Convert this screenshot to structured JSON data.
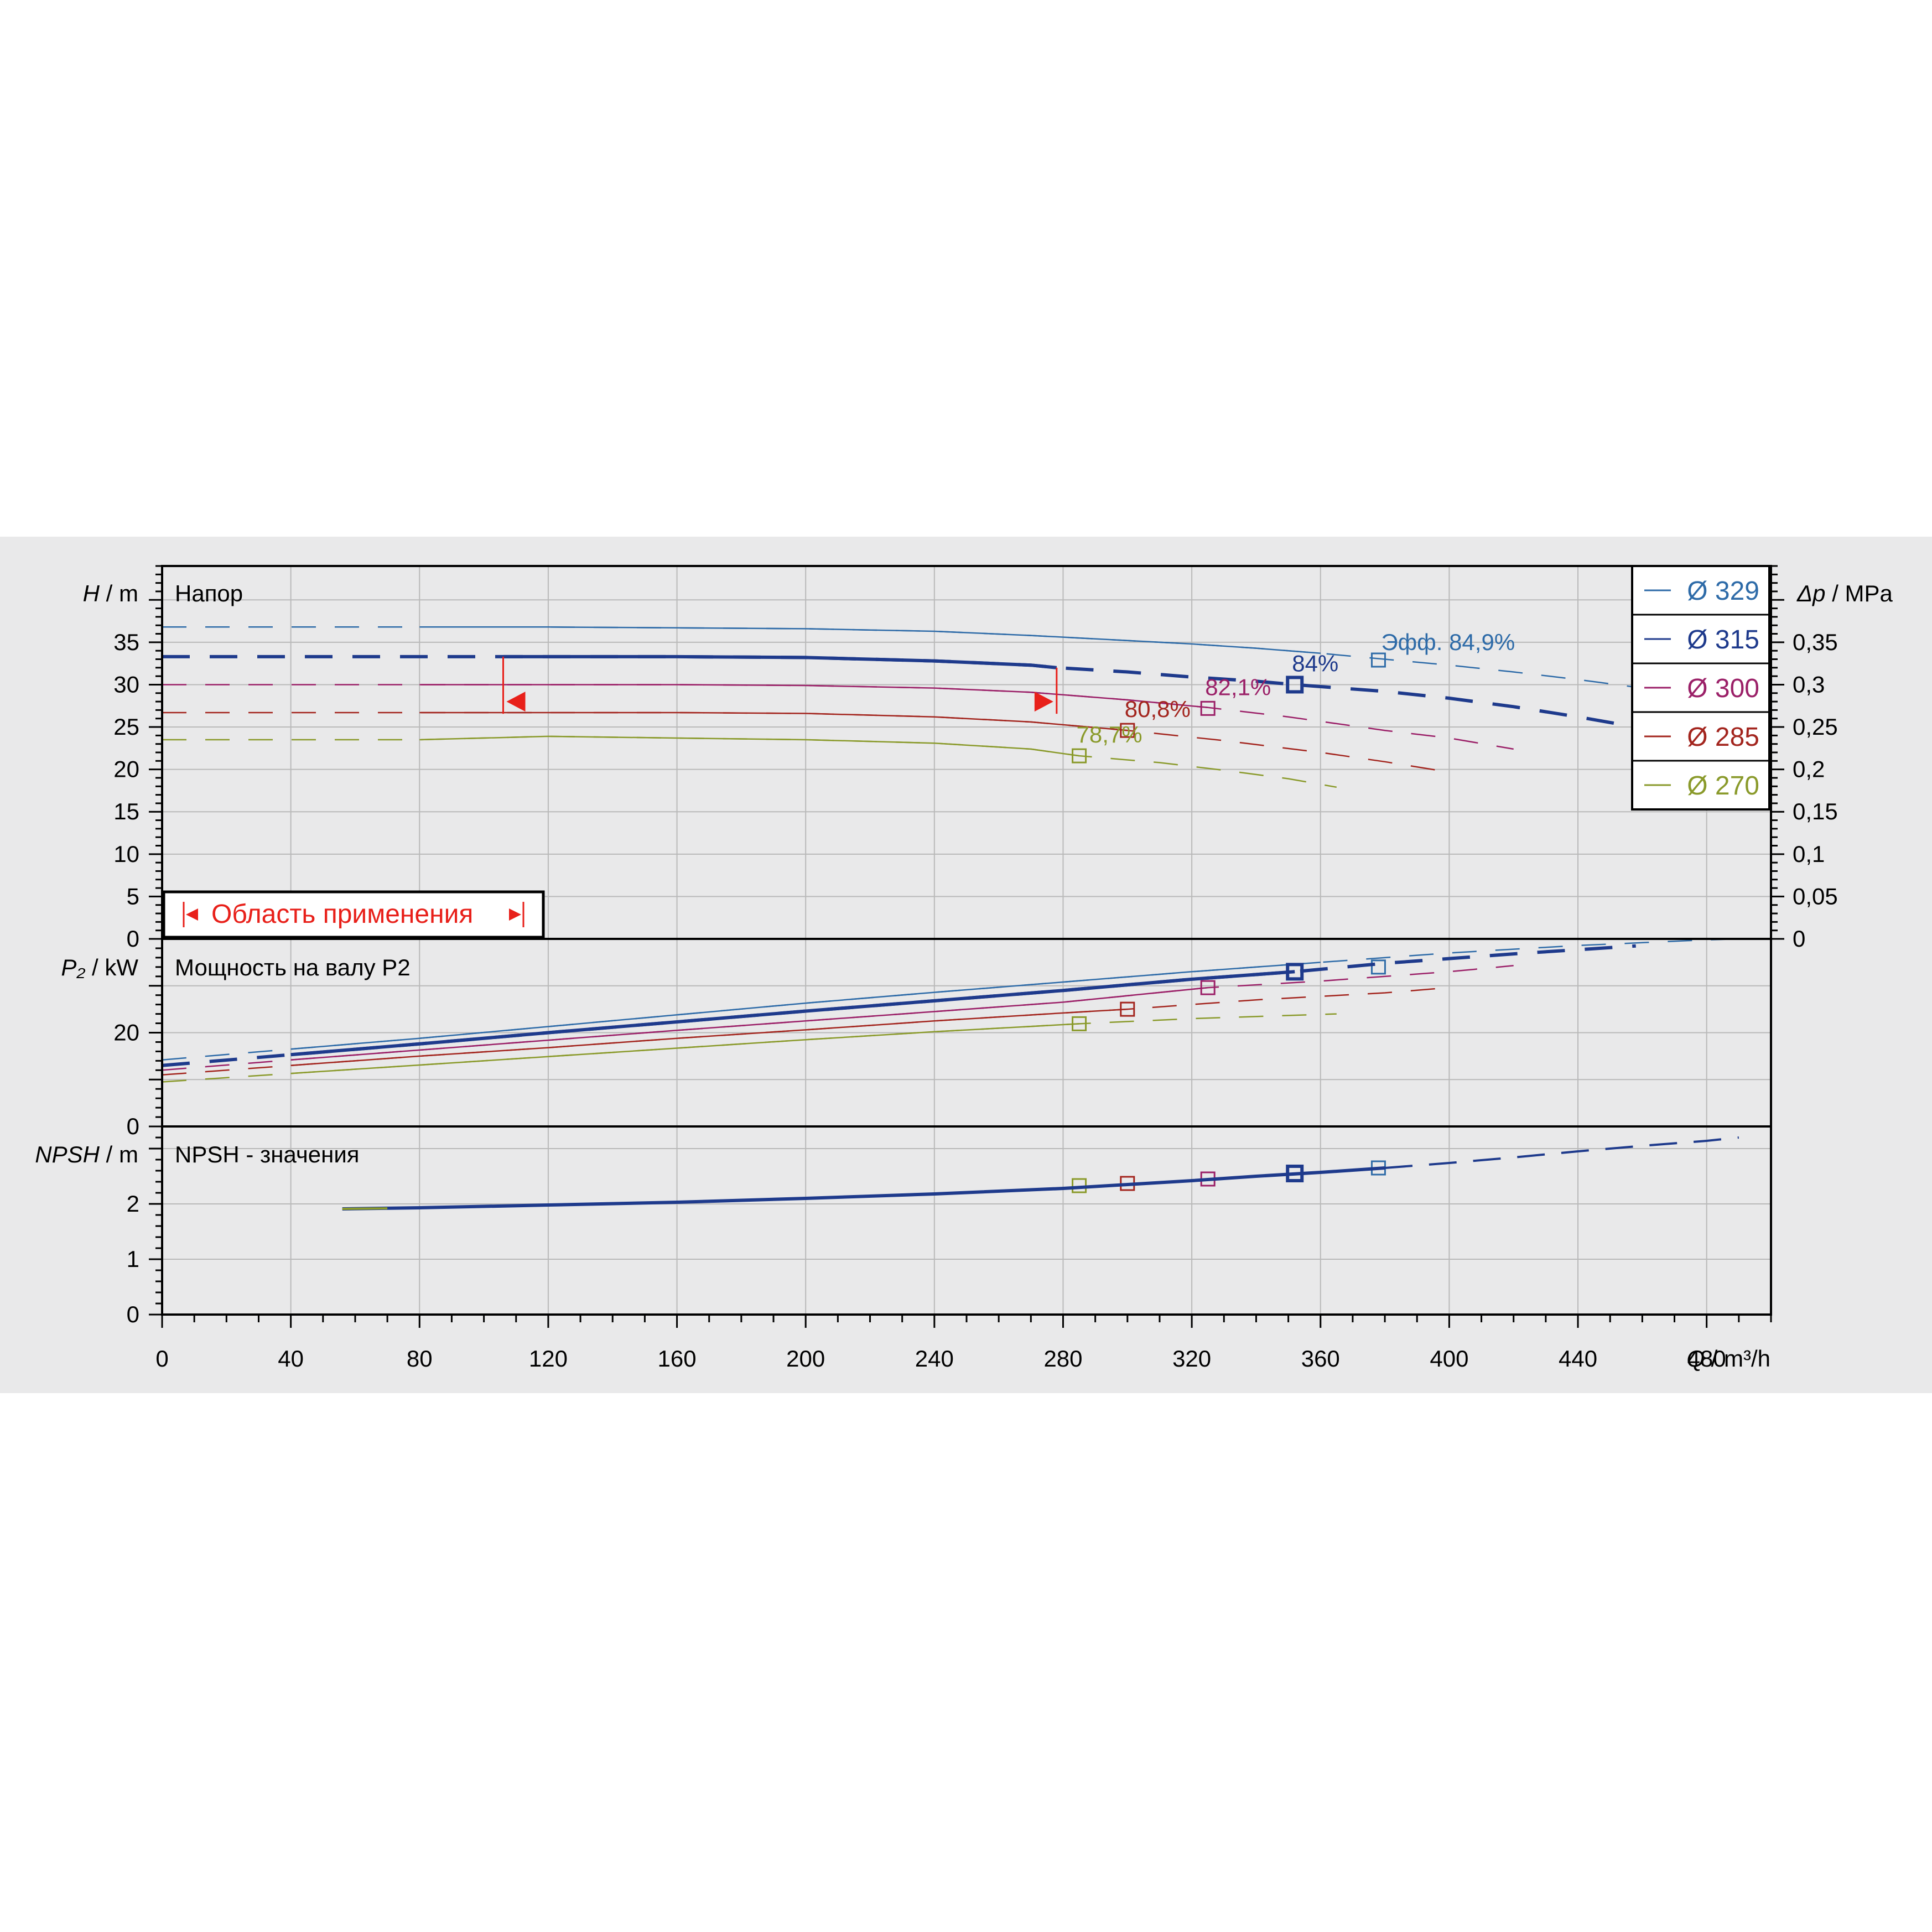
{
  "chart_data": {
    "type": "line",
    "x_axis": {
      "label_italic": "Q",
      "label_unit": "/ m³/h",
      "range": [
        0,
        500
      ],
      "ticks": [
        "0",
        "40",
        "80",
        "120",
        "160",
        "200",
        "240",
        "280",
        "320",
        "360",
        "400",
        "440",
        "480"
      ]
    },
    "panels": {
      "head": {
        "title": "Напор",
        "y_label_italic": "H",
        "y_label_unit": "/ m",
        "y_range": [
          0,
          44
        ],
        "y_ticks": [
          "0",
          "5",
          "10",
          "15",
          "20",
          "25",
          "30",
          "35"
        ],
        "right_label_italic": "Δp",
        "right_label_unit": "/ MPa",
        "right_ticks": [
          "0",
          "0,05",
          "0,1",
          "0,15",
          "0,2",
          "0,25",
          "0,3",
          "0,35"
        ],
        "efficiency_prefix": "Эфф.",
        "operating_range_label": "Область применения",
        "operating_range": {
          "q_min": 106,
          "q_max": 278,
          "color": "#e8201a"
        }
      },
      "power": {
        "title": "Мощность на валу P2",
        "y_label_italic": "P₂",
        "y_label_unit": "/ kW",
        "y_range": [
          0,
          40
        ],
        "y_ticks": [
          "0",
          "20"
        ]
      },
      "npsh": {
        "title": "NPSH - значения",
        "y_label_italic": "NPSH",
        "y_label_unit": "/ m",
        "y_range": [
          0,
          3.4
        ],
        "y_ticks": [
          "0",
          "1",
          "2"
        ]
      }
    },
    "series": [
      {
        "name": "Ø 329",
        "color": "#2e6ba8",
        "width": 2.5,
        "highlight": false,
        "head_x": [
          0,
          40,
          80,
          120,
          160,
          200,
          240,
          270,
          300,
          320,
          340,
          360,
          380,
          400,
          420,
          440,
          460,
          480,
          490
        ],
        "head_y": [
          36.8,
          36.8,
          36.8,
          36.8,
          36.7,
          36.6,
          36.3,
          35.8,
          35.2,
          34.8,
          34.3,
          33.7,
          33.0,
          32.3,
          31.5,
          30.6,
          29.6,
          28.5,
          27.8
        ],
        "power_x": [
          0,
          40,
          80,
          120,
          160,
          200,
          240,
          280,
          320,
          360,
          400,
          440,
          480,
          490
        ],
        "power_y": [
          14.2,
          16.5,
          18.8,
          21.3,
          23.8,
          26.3,
          28.6,
          30.8,
          33.0,
          35.0,
          37.0,
          38.6,
          39.8,
          40.0
        ],
        "bep": {
          "x": 378,
          "h": 32.9,
          "p": 34.0,
          "n": 2.65
        },
        "efficiency_label": "84,9%"
      },
      {
        "name": "Ø 315",
        "color": "#1e3a8c",
        "width": 6,
        "highlight": true,
        "head_x": [
          0,
          40,
          80,
          106,
          160,
          200,
          240,
          270,
          278,
          300,
          320,
          340,
          352,
          380,
          400,
          420,
          440,
          458
        ],
        "head_y": [
          33.3,
          33.3,
          33.3,
          33.3,
          33.3,
          33.2,
          32.8,
          32.3,
          32.0,
          31.5,
          30.9,
          30.4,
          30.0,
          29.2,
          28.4,
          27.4,
          26.2,
          25.0
        ],
        "power_x": [
          0,
          40,
          80,
          120,
          160,
          200,
          240,
          280,
          320,
          352,
          380,
          420,
          458
        ],
        "power_y": [
          13.0,
          15.3,
          17.6,
          20.0,
          22.3,
          24.6,
          26.8,
          29.0,
          31.4,
          33.0,
          34.8,
          36.8,
          38.5
        ],
        "bep": {
          "x": 352,
          "h": 30.0,
          "p": 33.0,
          "n": 2.55
        },
        "efficiency_label": "84%"
      },
      {
        "name": "Ø 300",
        "color": "#9b2068",
        "width": 2.5,
        "highlight": false,
        "head_x": [
          0,
          40,
          80,
          120,
          160,
          200,
          240,
          270,
          300,
          325,
          350,
          380,
          400,
          420
        ],
        "head_y": [
          30.0,
          30.0,
          30.0,
          30.0,
          30.0,
          29.9,
          29.6,
          29.1,
          28.2,
          27.3,
          26.2,
          24.6,
          23.7,
          22.4
        ],
        "power_x": [
          0,
          40,
          80,
          120,
          160,
          200,
          240,
          280,
          325,
          360,
          400,
          420
        ],
        "power_y": [
          12.0,
          14.2,
          16.3,
          18.4,
          20.5,
          22.5,
          24.5,
          26.5,
          29.6,
          31.0,
          33.0,
          34.3
        ],
        "bep": {
          "x": 325,
          "h": 27.2,
          "p": 29.6,
          "n": 2.45
        },
        "efficiency_label": "82,1%"
      },
      {
        "name": "Ø 285",
        "color": "#a3251e",
        "width": 2.5,
        "highlight": false,
        "head_x": [
          0,
          40,
          80,
          120,
          160,
          200,
          240,
          270,
          300,
          330,
          360,
          380,
          398
        ],
        "head_y": [
          26.7,
          26.7,
          26.7,
          26.7,
          26.7,
          26.6,
          26.2,
          25.6,
          24.6,
          23.4,
          22.0,
          20.9,
          19.8
        ],
        "power_x": [
          0,
          40,
          80,
          120,
          160,
          200,
          240,
          280,
          300,
          340,
          380,
          398
        ],
        "power_y": [
          11.0,
          13.0,
          15.0,
          16.8,
          18.8,
          20.6,
          22.5,
          24.2,
          25.0,
          27.0,
          28.5,
          29.5
        ],
        "bep": {
          "x": 300,
          "h": 24.6,
          "p": 25.0,
          "n": 2.37
        },
        "efficiency_label": "80,8%"
      },
      {
        "name": "Ø 270",
        "color": "#8a9a2b",
        "width": 2.5,
        "highlight": false,
        "head_x": [
          0,
          40,
          80,
          120,
          160,
          200,
          240,
          270,
          285,
          310,
          330,
          350,
          365
        ],
        "head_y": [
          23.5,
          23.5,
          23.5,
          23.9,
          23.7,
          23.5,
          23.1,
          22.4,
          21.6,
          20.8,
          19.9,
          18.9,
          17.9
        ],
        "power_x": [
          0,
          40,
          80,
          120,
          160,
          200,
          240,
          285,
          320,
          365
        ],
        "power_y": [
          9.5,
          11.3,
          13.1,
          14.9,
          16.7,
          18.5,
          20.2,
          21.9,
          23.0,
          24.0
        ],
        "bep": {
          "x": 285,
          "h": 21.6,
          "p": 21.9,
          "n": 2.33
        },
        "efficiency_label": "78,7%"
      }
    ],
    "npsh_curve": {
      "x": [
        56,
        80,
        120,
        160,
        200,
        240,
        280,
        300,
        320,
        340,
        360,
        380,
        400,
        420,
        440,
        460,
        480,
        490
      ],
      "y": [
        1.91,
        1.93,
        1.98,
        2.03,
        2.1,
        2.18,
        2.28,
        2.35,
        2.42,
        2.5,
        2.57,
        2.65,
        2.74,
        2.84,
        2.95,
        3.05,
        3.14,
        3.2
      ],
      "color": "#1e3a8c"
    }
  }
}
